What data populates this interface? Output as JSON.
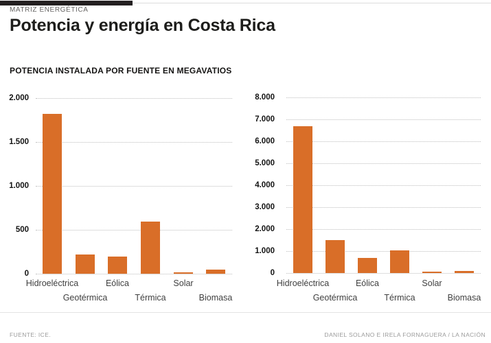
{
  "header": {
    "kicker": "MATRIZ ENERGÉTICA",
    "title": "Potencia y energía en Costa Rica",
    "subtitle": "POTENCIA INSTALADA POR FUENTE EN MEGAVATIOS"
  },
  "footer": {
    "source": "FUENTE: ICE.",
    "credit": "DANIEL SOLANO E IRELA FORNAGUERA / LA NACIÓN"
  },
  "colors": {
    "bar": "#D96E28",
    "gridline": "#bdbdbd",
    "top_bar": "#231f20",
    "kicker_text": "#666463",
    "title_text": "#1d1d1b",
    "tick_label": "#131313",
    "category_label": "#3f3f3f",
    "footer_text": "#9b9b9b",
    "divider": "#e3e3e3"
  },
  "chart_data": [
    {
      "type": "bar",
      "title": "",
      "xlabel": "",
      "ylabel": "",
      "categories": [
        "Hidroeléctrica",
        "Geotérmica",
        "Eólica",
        "Térmica",
        "Solar",
        "Biomasa"
      ],
      "values": [
        1820,
        215,
        195,
        590,
        10,
        45
      ],
      "ylim": [
        0,
        2000
      ],
      "ytick_step": 500,
      "ytick_labels": [
        "0",
        "500",
        "1.000",
        "1.500",
        "2.000"
      ],
      "grid": "horizontal-dotted",
      "legend": "none",
      "unit": "megavatios"
    },
    {
      "type": "bar",
      "title": "",
      "xlabel": "",
      "ylabel": "",
      "categories": [
        "Hidroeléctrica",
        "Geotérmica",
        "Eólica",
        "Térmica",
        "Solar",
        "Biomasa"
      ],
      "values": [
        6700,
        1500,
        700,
        1030,
        35,
        80
      ],
      "ylim": [
        0,
        8000
      ],
      "ytick_step": 1000,
      "ytick_labels": [
        "0",
        "1.000",
        "2.000",
        "3.000",
        "4.000",
        "5.000",
        "6.000",
        "7.000",
        "8.000"
      ],
      "grid": "horizontal-dotted",
      "legend": "none",
      "unit": "megavatios"
    }
  ]
}
